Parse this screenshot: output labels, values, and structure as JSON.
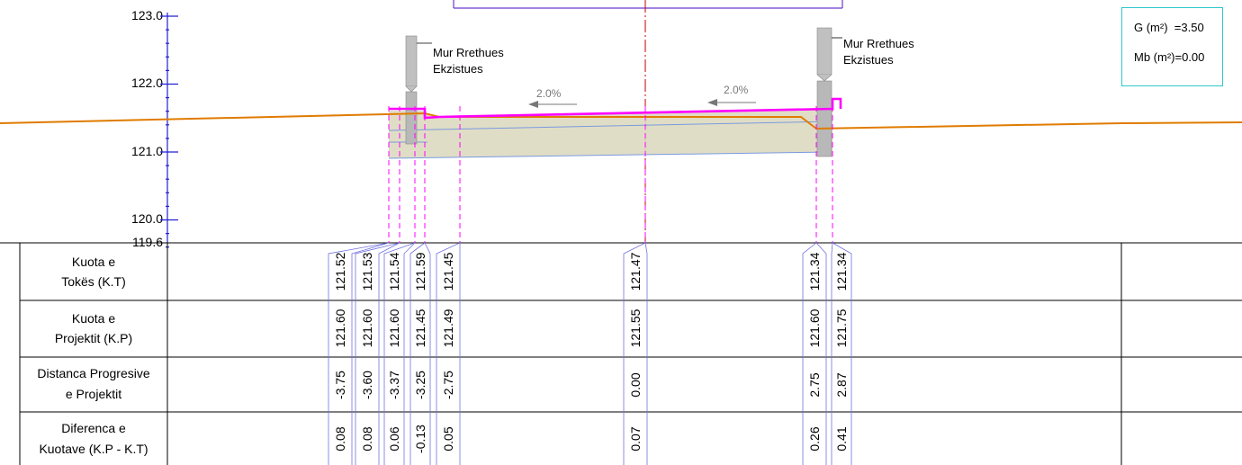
{
  "profile": {
    "elevation_axis": {
      "ticks": [
        "123.0",
        "122.0",
        "121.0",
        "120.0"
      ],
      "datum_label": "119.6"
    },
    "slope_labels": [
      "2.0%",
      "2.0%"
    ],
    "wall_labels": [
      {
        "line1": "Mur Rrethues",
        "line2": "Ekzistues"
      },
      {
        "line1": "Mur Rrethues",
        "line2": "Ekzistues"
      }
    ],
    "area_box": {
      "cut_label": "G (m²)",
      "cut_value": "=3.50",
      "fill_label": "Mb (m²)",
      "fill_value": "=0.00"
    },
    "colors": {
      "design_line": "#ff00ff",
      "ground_line": "#e07b00",
      "structure_fill": "#ddd9c0",
      "axis": "#2020d0",
      "centerline": "#c00000",
      "wall": "#c0c0c0"
    }
  },
  "table": {
    "row_labels": [
      {
        "line1": "Kuota e",
        "line2": "Tokës (K.T)"
      },
      {
        "line1": "Kuota e",
        "line2": "Projektit (K.P)"
      },
      {
        "line1": "Distanca Progresive",
        "line2": "e Projektit"
      },
      {
        "line1": "Diferenca e",
        "line2": "Kuotave (K.P - K.T)"
      }
    ],
    "columns": [
      {
        "ground": "121.52",
        "project": "121.60",
        "distance": "-3.75",
        "diff": "0.08"
      },
      {
        "ground": "121.53",
        "project": "121.60",
        "distance": "-3.60",
        "diff": "0.08"
      },
      {
        "ground": "121.54",
        "project": "121.60",
        "distance": "-3.37",
        "diff": "0.06"
      },
      {
        "ground": "121.59",
        "project": "121.45",
        "distance": "-3.25",
        "diff": "-0.13"
      },
      {
        "ground": "121.45",
        "project": "121.49",
        "distance": "-2.75",
        "diff": "0.05"
      },
      {
        "ground": "121.47",
        "project": "121.55",
        "distance": "0.00",
        "diff": "0.07"
      },
      {
        "ground": "121.34",
        "project": "121.60",
        "distance": "2.75",
        "diff": "0.26"
      },
      {
        "ground": "121.34",
        "project": "121.75",
        "distance": "2.87",
        "diff": "0.41"
      }
    ]
  }
}
